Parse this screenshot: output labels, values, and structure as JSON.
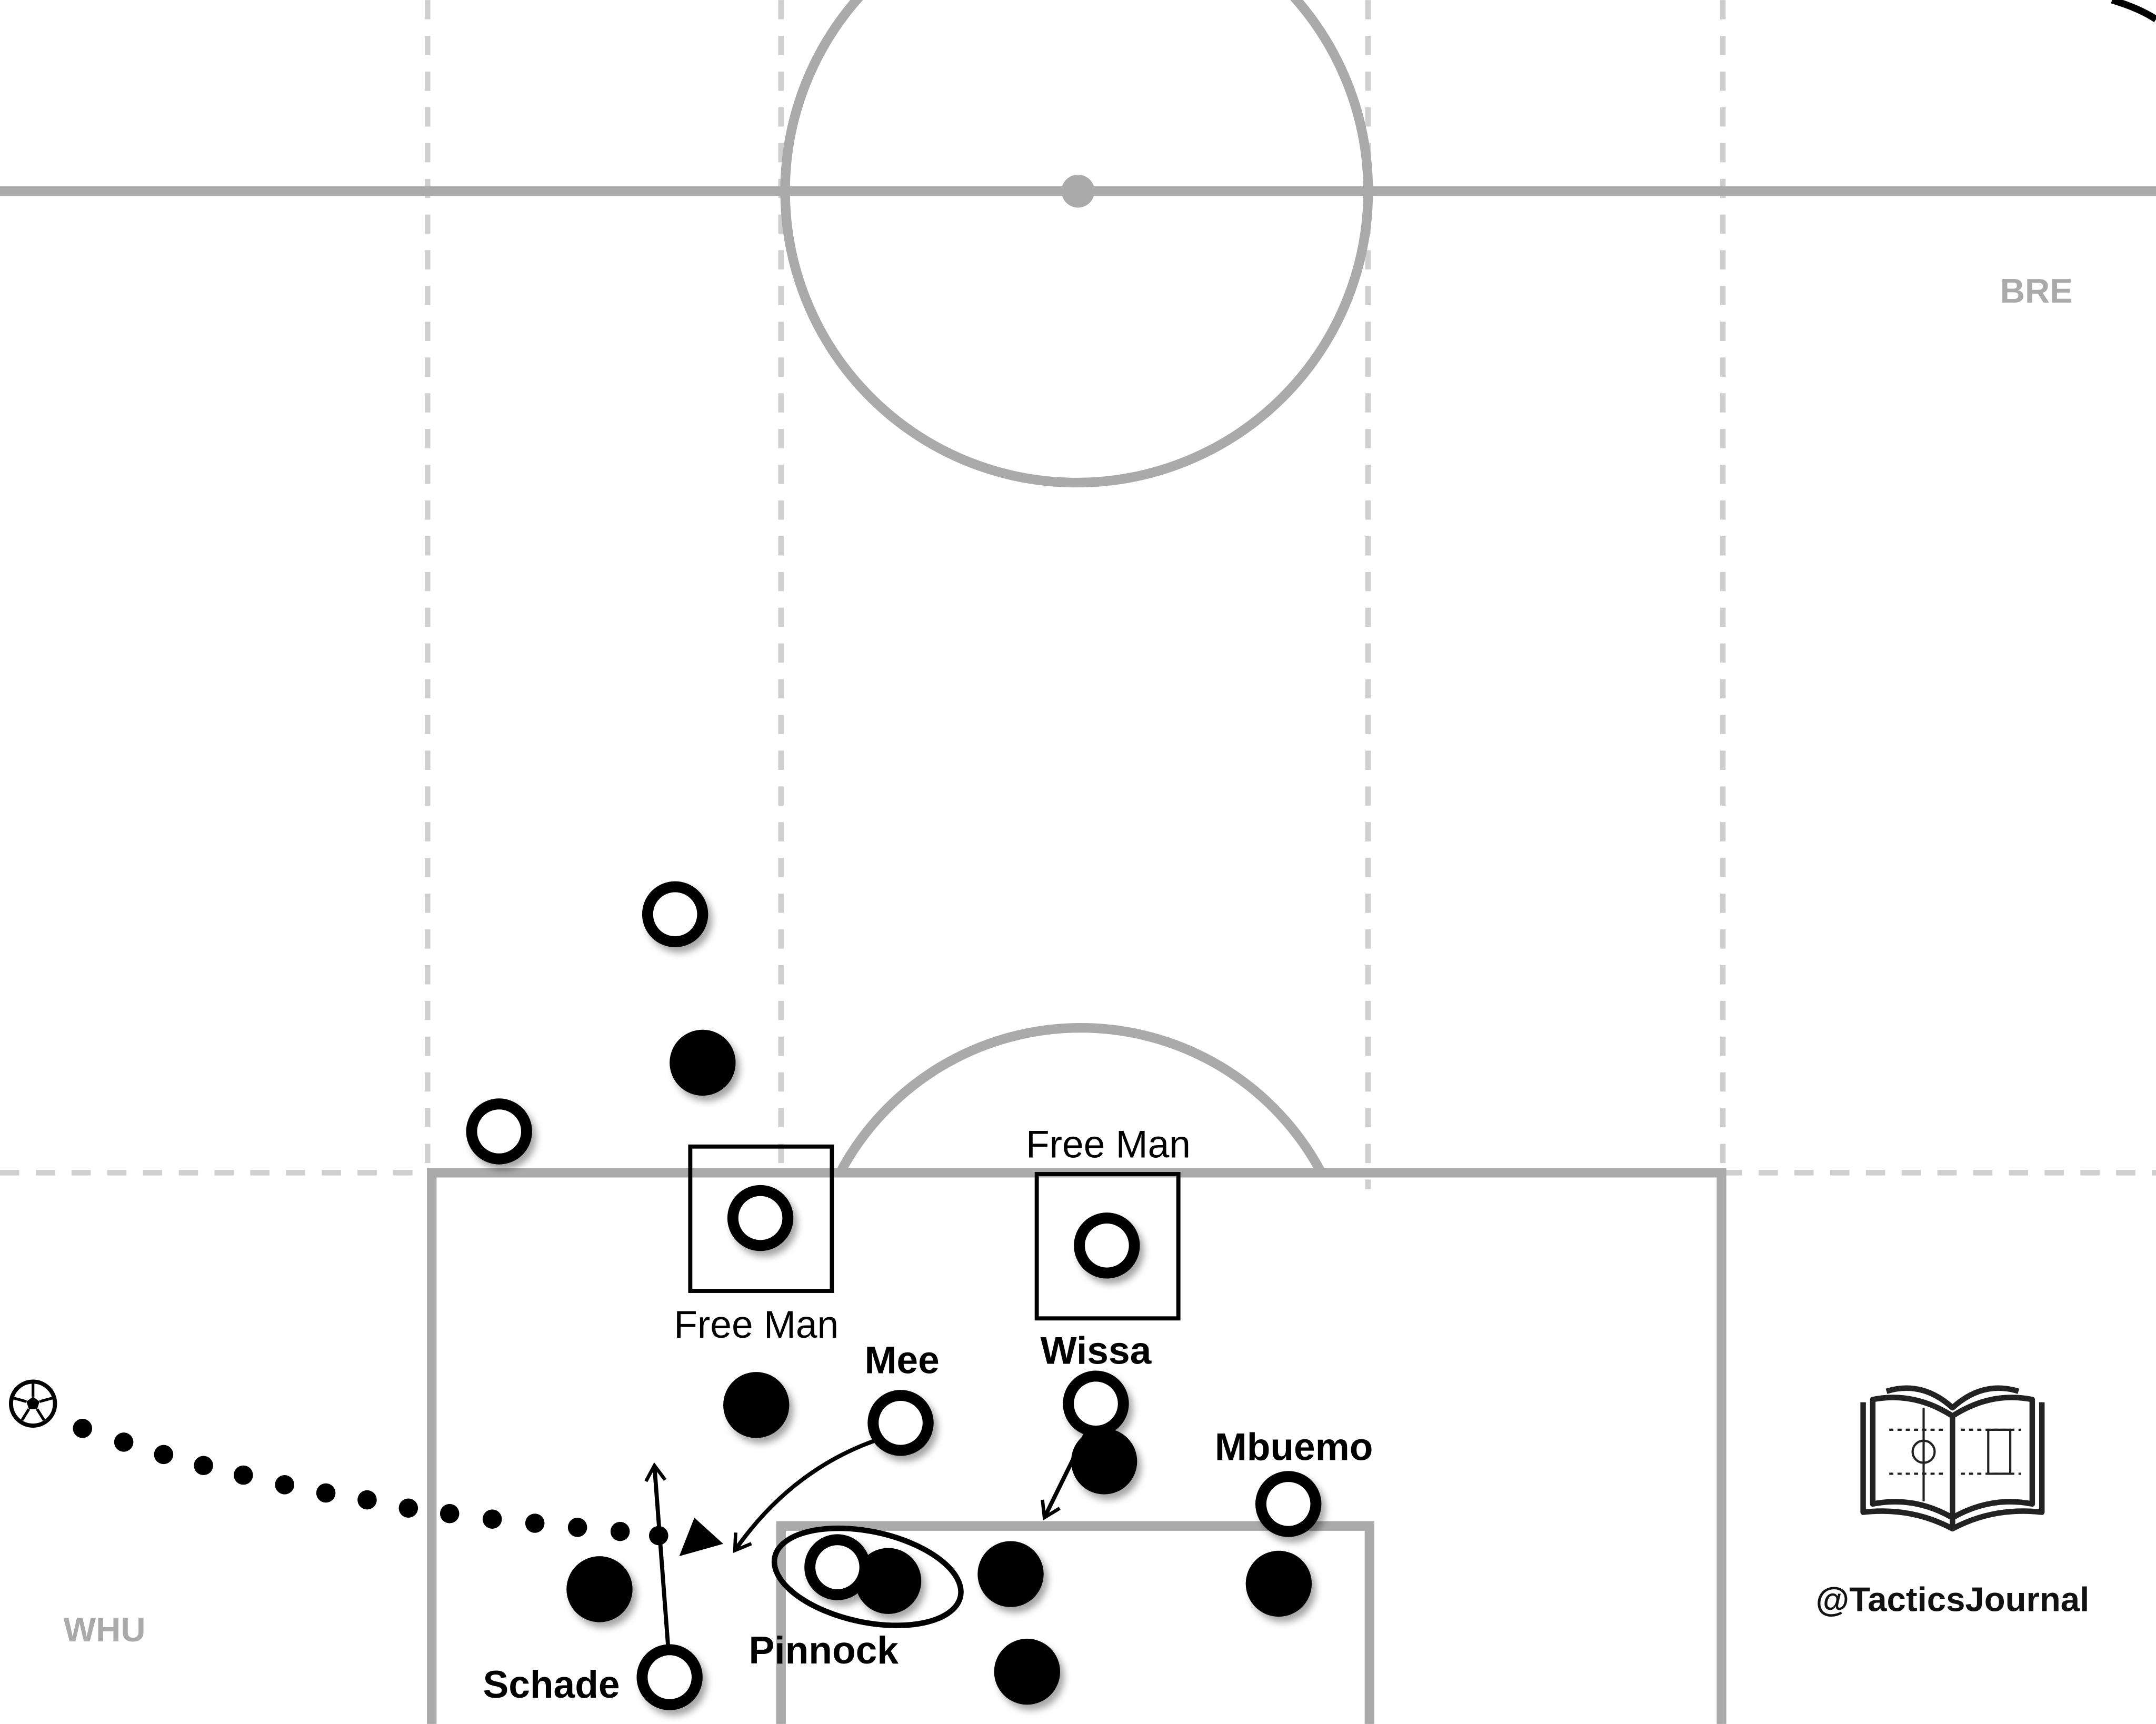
{
  "teams": {
    "home": "WHU",
    "away": "BRE"
  },
  "watermark": "@TacticsJournal",
  "annotations": {
    "free_man_left": "Free Man",
    "free_man_right": "Free Man"
  },
  "players": {
    "schade": "Schade",
    "pinnock": "Pinnock",
    "mee": "Mee",
    "wissa": "Wissa",
    "mbuemo": "Mbuemo"
  },
  "colors": {
    "pitch_lines": "#aaaaaa",
    "zone_lines": "#cfcfcf",
    "team_label": "#aaaaaa",
    "ink": "#000000",
    "background": "#ffffff"
  },
  "icons": {
    "ball": "football-icon",
    "logo": "open-book-pitch-icon"
  }
}
